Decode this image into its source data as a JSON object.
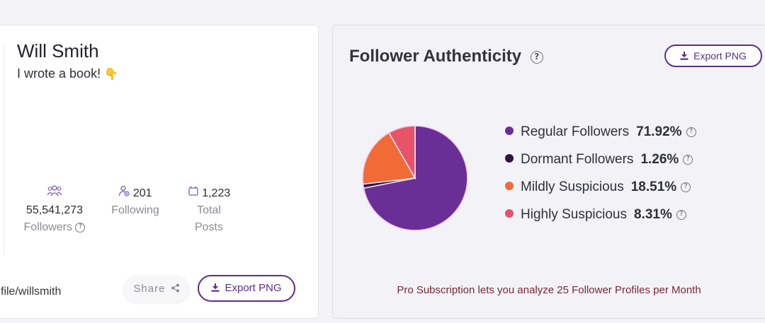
{
  "profile": {
    "name": "Will Smith",
    "bio": "I wrote a book!",
    "bio_emoji": "👇",
    "stats": {
      "followers": {
        "value": "55,541,273",
        "label": "Followers"
      },
      "following": {
        "value": "201",
        "label": "Following"
      },
      "posts": {
        "value": "1,223",
        "label_line1": "Total",
        "label_line2": "Posts"
      }
    },
    "url_fragment": "file/willsmith",
    "share_label": "Share",
    "export_label": "Export PNG"
  },
  "authenticity": {
    "title": "Follower Authenticity",
    "export_label": "Export PNG",
    "pro_note": "Pro Subscription lets you analyze 25 Follower Profiles per Month"
  },
  "colors": {
    "accent": "#5b2f86",
    "regular": "#6a2f96",
    "dormant": "#2e1248",
    "mildly": "#f26a35",
    "highly": "#e8536a"
  },
  "icons": [
    "users-icon",
    "user-add-icon",
    "posts-icon",
    "question-icon",
    "share-icon",
    "download-icon"
  ],
  "chart_data": {
    "type": "pie",
    "title": "Follower Authenticity",
    "slices": [
      {
        "label": "Regular Followers",
        "value": 71.92,
        "display": "71.92%",
        "color": "#6a2f96"
      },
      {
        "label": "Dormant Followers",
        "value": 1.26,
        "display": "1.26%",
        "color": "#2e1248"
      },
      {
        "label": "Mildly Suspicious",
        "value": 18.51,
        "display": "18.51%",
        "color": "#f26a35"
      },
      {
        "label": "Highly Suspicious",
        "value": 8.31,
        "display": "8.31%",
        "color": "#e8536a"
      }
    ],
    "legend": "right"
  }
}
